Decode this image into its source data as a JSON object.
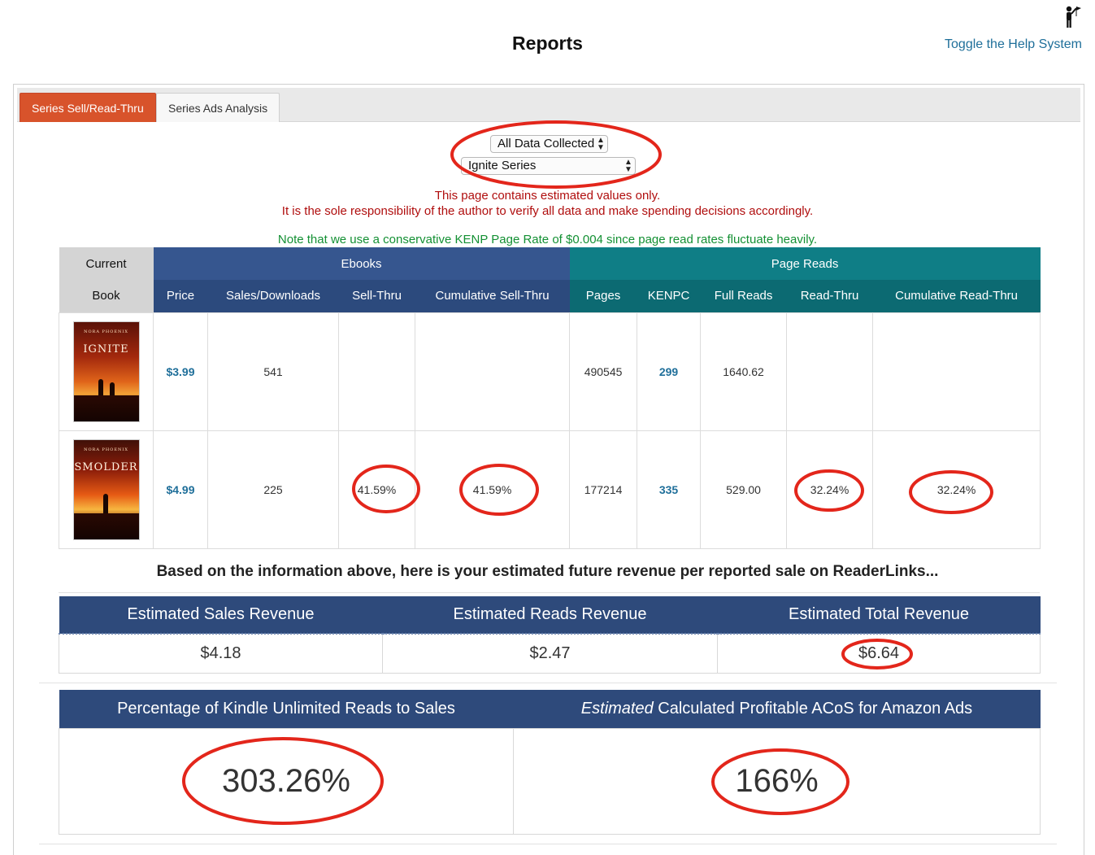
{
  "header": {
    "title": "Reports",
    "help_link": "Toggle the Help System",
    "help_icon": "help-person-icon"
  },
  "tabs": [
    {
      "label": "Series Sell/Read-Thru",
      "active": true
    },
    {
      "label": "Series Ads Analysis",
      "active": false
    }
  ],
  "filters": {
    "period": "All Data Collected",
    "series": "Ignite Series"
  },
  "notices": {
    "warning_line1": "This page contains estimated values only.",
    "warning_line2": "It is the sole responsibility of the author to verify all data and make spending decisions accordingly.",
    "kenp_note": "Note that we use a conservative KENP Page Rate of $0.004 since page read rates fluctuate heavily."
  },
  "table": {
    "group_headers": {
      "current": "Current",
      "ebooks": "Ebooks",
      "page_reads": "Page Reads"
    },
    "columns": [
      "Book",
      "Price",
      "Sales/Downloads",
      "Sell-Thru",
      "Cumulative Sell-Thru",
      "Pages",
      "KENPC",
      "Full Reads",
      "Read-Thru",
      "Cumulative Read-Thru"
    ],
    "rows": [
      {
        "cover_author": "NORA PHOENIX",
        "cover_title": "IGNITE",
        "price": "$3.99",
        "sales": "541",
        "sell_thru": "",
        "cum_sell_thru": "",
        "pages": "490545",
        "kenpc": "299",
        "full_reads": "1640.62",
        "read_thru": "",
        "cum_read_thru": ""
      },
      {
        "cover_author": "NORA PHOENIX",
        "cover_title": "SMOLDER",
        "price": "$4.99",
        "sales": "225",
        "sell_thru": "41.59%",
        "cum_sell_thru": "41.59%",
        "pages": "177214",
        "kenpc": "335",
        "full_reads": "529.00",
        "read_thru": "32.24%",
        "cum_read_thru": "32.24%"
      }
    ]
  },
  "revenue": {
    "intro": "Based on the information above, here is your estimated future revenue per reported sale on ReaderLinks...",
    "headers": [
      "Estimated Sales Revenue",
      "Estimated Reads Revenue",
      "Estimated Total Revenue"
    ],
    "values": [
      "$4.18",
      "$2.47",
      "$6.64"
    ]
  },
  "stats": {
    "ku_header": "Percentage of Kindle Unlimited Reads to Sales",
    "acos_header_em": "Estimated",
    "acos_header_rest": " Calculated Profitable ACoS for Amazon Ads",
    "ku_value": "303.26%",
    "acos_value": "166%"
  },
  "colors": {
    "tab_active": "#d8532b",
    "ebooks_header": "#36568f",
    "page_reads_header": "#0f7e86",
    "warning": "#b00e0e",
    "note": "#139033",
    "link": "#1f6f9a",
    "annotation": "#e3261b"
  }
}
